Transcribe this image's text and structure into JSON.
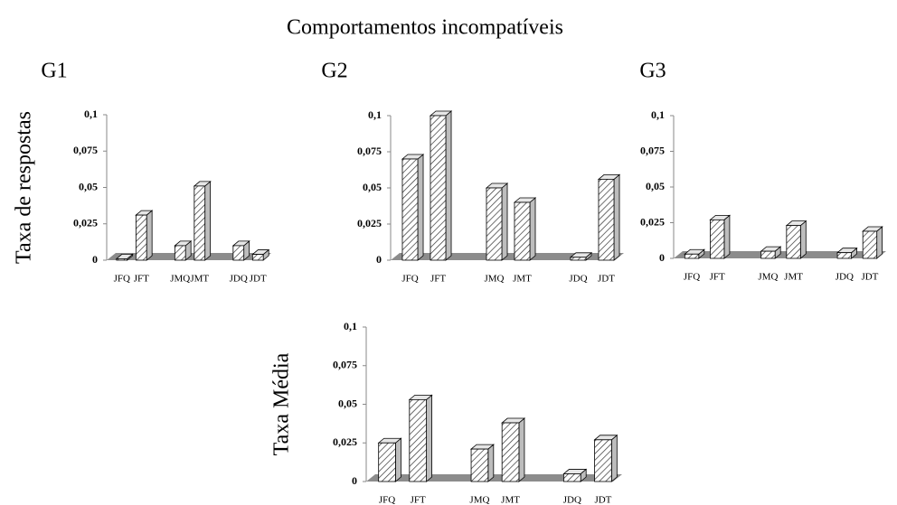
{
  "title": "Comportamentos incompatíveis",
  "chart_data": [
    {
      "type": "bar3d",
      "title": "G1",
      "ylabel": "Taxa de respostas",
      "categories": [
        "JFQ",
        "JFT",
        "JMQ",
        "JMT",
        "JDQ",
        "JDT"
      ],
      "values": [
        0.001,
        0.031,
        0.01,
        0.051,
        0.01,
        0.004
      ],
      "ylim": [
        0,
        0.1
      ],
      "yticks": [
        0,
        {
          "value": 0.025,
          "label": "0,025"
        },
        {
          "value": 0.05,
          "label": "0,05"
        },
        {
          "value": 0.075,
          "label": "0,075"
        },
        {
          "value": 0.1,
          "label": "0,1"
        }
      ],
      "color": "#ffffff"
    },
    {
      "type": "bar3d",
      "title": "G2",
      "categories": [
        "JFQ",
        "JFT",
        "JMQ",
        "JMT",
        "JDQ",
        "JDT"
      ],
      "values": [
        0.07,
        0.1,
        0.05,
        0.04,
        0.002,
        0.056
      ],
      "ylim": [
        0,
        0.1
      ],
      "yticks": [
        0,
        {
          "value": 0.025,
          "label": "0,025"
        },
        {
          "value": 0.05,
          "label": "0,05"
        },
        {
          "value": 0.075,
          "label": "0,075"
        },
        {
          "value": 0.1,
          "label": "0,1"
        }
      ],
      "color": "#ffffff"
    },
    {
      "type": "bar3d",
      "title": "G3",
      "categories": [
        "JFQ",
        "JFT",
        "JMQ",
        "JMT",
        "JDQ",
        "JDT"
      ],
      "values": [
        0.003,
        0.027,
        0.005,
        0.023,
        0.004,
        0.019
      ],
      "ylim": [
        0,
        0.1
      ],
      "yticks": [
        0,
        {
          "value": 0.025,
          "label": "0,025"
        },
        {
          "value": 0.05,
          "label": "0,05"
        },
        {
          "value": 0.075,
          "label": "0,075"
        },
        {
          "value": 0.1,
          "label": "0,1"
        }
      ],
      "color": "#ffffff"
    },
    {
      "type": "bar3d",
      "ylabel": "Taxa Média",
      "categories": [
        "JFQ",
        "JFT",
        "JMQ",
        "JMT",
        "JDQ",
        "JDT"
      ],
      "values": [
        0.025,
        0.053,
        0.021,
        0.038,
        0.005,
        0.027
      ],
      "ylim": [
        0,
        0.1
      ],
      "yticks": [
        0,
        {
          "value": 0.025,
          "label": "0,025"
        },
        {
          "value": 0.05,
          "label": "0,05"
        },
        {
          "value": 0.075,
          "label": "0,075"
        },
        {
          "value": 0.1,
          "label": "0,1"
        }
      ],
      "color": "#ffffff"
    }
  ]
}
